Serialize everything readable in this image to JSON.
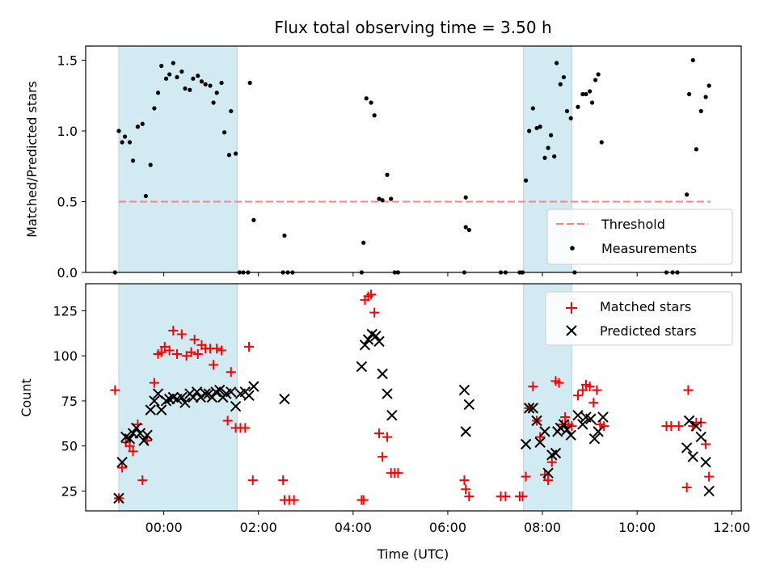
{
  "title": "Flux total observing time = 3.50 h",
  "colors": {
    "shade": "#add8e6",
    "threshold": "#ff7f7f",
    "measure": "#000000",
    "matched": "#ff0000",
    "predicted": "#000000"
  },
  "chart_data": [
    {
      "type": "scatter",
      "ylabel": "Matched/Predicted stars",
      "ylim": [
        0,
        1.6
      ],
      "yticks": [
        0.0,
        0.5,
        1.0,
        1.5
      ],
      "ytick_labels": [
        "0.0",
        "0.5",
        "1.0",
        "1.5"
      ],
      "xlim": [
        -1.65,
        12.2
      ],
      "shaded_intervals": [
        [
          -0.95,
          1.55
        ],
        [
          7.6,
          8.62
        ]
      ],
      "threshold": {
        "name": "Threshold",
        "value": 0.5,
        "x": [
          -0.95,
          11.55
        ]
      },
      "legend_position": "bottom-right",
      "series": [
        {
          "name": "Measurements",
          "marker": "dot",
          "points": [
            [
              -1.03,
              0.0
            ],
            [
              -0.95,
              1.0
            ],
            [
              -0.88,
              0.92
            ],
            [
              -0.82,
              0.96
            ],
            [
              -0.72,
              0.92
            ],
            [
              -0.65,
              0.79
            ],
            [
              -0.55,
              1.03
            ],
            [
              -0.45,
              1.05
            ],
            [
              -0.38,
              0.54
            ],
            [
              -0.28,
              0.76
            ],
            [
              -0.2,
              1.16
            ],
            [
              -0.12,
              1.27
            ],
            [
              -0.05,
              1.46
            ],
            [
              0.05,
              1.37
            ],
            [
              0.12,
              1.4
            ],
            [
              0.2,
              1.48
            ],
            [
              0.28,
              1.38
            ],
            [
              0.38,
              1.42
            ],
            [
              0.45,
              1.3
            ],
            [
              0.55,
              1.29
            ],
            [
              0.62,
              1.37
            ],
            [
              0.72,
              1.39
            ],
            [
              0.8,
              1.35
            ],
            [
              0.88,
              1.33
            ],
            [
              0.98,
              1.32
            ],
            [
              1.05,
              1.2
            ],
            [
              1.12,
              1.27
            ],
            [
              1.22,
              1.34
            ],
            [
              1.28,
              0.99
            ],
            [
              1.38,
              0.83
            ],
            [
              1.42,
              1.14
            ],
            [
              1.52,
              0.84
            ],
            [
              1.6,
              0.0
            ],
            [
              1.68,
              0.0
            ],
            [
              1.78,
              0.0
            ],
            [
              1.82,
              1.34
            ],
            [
              1.9,
              0.37
            ],
            [
              2.52,
              0.0
            ],
            [
              2.55,
              0.26
            ],
            [
              2.62,
              0.0
            ],
            [
              2.72,
              0.0
            ],
            [
              4.18,
              0.0
            ],
            [
              4.22,
              0.21
            ],
            [
              4.28,
              1.23
            ],
            [
              4.38,
              1.2
            ],
            [
              4.45,
              1.11
            ],
            [
              4.55,
              0.52
            ],
            [
              4.62,
              0.51
            ],
            [
              4.72,
              0.69
            ],
            [
              4.8,
              0.52
            ],
            [
              4.88,
              0.0
            ],
            [
              4.95,
              0.0
            ],
            [
              6.35,
              0.0
            ],
            [
              6.38,
              0.53
            ],
            [
              6.38,
              0.32
            ],
            [
              6.45,
              0.3
            ],
            [
              7.12,
              0.0
            ],
            [
              7.22,
              0.0
            ],
            [
              7.52,
              0.0
            ],
            [
              7.58,
              0.0
            ],
            [
              7.65,
              0.65
            ],
            [
              7.72,
              1.0
            ],
            [
              7.8,
              1.16
            ],
            [
              7.88,
              1.02
            ],
            [
              7.95,
              1.03
            ],
            [
              8.05,
              0.81
            ],
            [
              8.12,
              0.88
            ],
            [
              8.18,
              0.97
            ],
            [
              8.25,
              0.82
            ],
            [
              8.3,
              1.48
            ],
            [
              8.38,
              1.33
            ],
            [
              8.45,
              1.38
            ],
            [
              8.52,
              1.14
            ],
            [
              8.6,
              1.09
            ],
            [
              8.68,
              0.0
            ],
            [
              8.75,
              1.17
            ],
            [
              8.85,
              1.26
            ],
            [
              8.92,
              1.26
            ],
            [
              9.0,
              1.28
            ],
            [
              9.05,
              1.2
            ],
            [
              9.12,
              1.36
            ],
            [
              9.18,
              1.4
            ],
            [
              9.25,
              0.92
            ],
            [
              10.62,
              0.0
            ],
            [
              10.75,
              0.0
            ],
            [
              10.85,
              0.0
            ],
            [
              11.05,
              0.55
            ],
            [
              11.1,
              1.26
            ],
            [
              11.18,
              1.5
            ],
            [
              11.25,
              0.87
            ],
            [
              11.35,
              1.14
            ],
            [
              11.45,
              1.24
            ],
            [
              11.52,
              1.32
            ]
          ]
        }
      ]
    },
    {
      "type": "scatter",
      "xlabel": "Time (UTC)",
      "ylabel": "Count",
      "ylim": [
        14,
        140
      ],
      "yticks": [
        25,
        50,
        75,
        100,
        125
      ],
      "ytick_labels": [
        "25",
        "50",
        "75",
        "100",
        "125"
      ],
      "xlim": [
        -1.65,
        12.2
      ],
      "xticks": [
        0,
        2,
        4,
        6,
        8,
        10,
        12
      ],
      "xtick_labels": [
        "00:00",
        "02:00",
        "04:00",
        "06:00",
        "08:00",
        "10:00",
        "12:00"
      ],
      "shaded_intervals": [
        [
          -0.95,
          1.55
        ],
        [
          7.6,
          8.62
        ]
      ],
      "legend_position": "top-right",
      "series": [
        {
          "name": "Matched stars",
          "marker": "plus",
          "points": [
            [
              -1.03,
              81
            ],
            [
              -0.95,
              21
            ],
            [
              -0.88,
              38
            ],
            [
              -0.8,
              52
            ],
            [
              -0.72,
              50
            ],
            [
              -0.65,
              47
            ],
            [
              -0.55,
              62
            ],
            [
              -0.45,
              31
            ],
            [
              -0.35,
              53
            ],
            [
              -0.2,
              85
            ],
            [
              -0.12,
              101
            ],
            [
              -0.05,
              102
            ],
            [
              0.02,
              105
            ],
            [
              0.12,
              103
            ],
            [
              0.2,
              114
            ],
            [
              0.28,
              101
            ],
            [
              0.38,
              112
            ],
            [
              0.48,
              100
            ],
            [
              0.58,
              102
            ],
            [
              0.65,
              109
            ],
            [
              0.72,
              101
            ],
            [
              0.8,
              106
            ],
            [
              0.88,
              104
            ],
            [
              0.98,
              104
            ],
            [
              1.05,
              95
            ],
            [
              1.12,
              104
            ],
            [
              1.22,
              103
            ],
            [
              1.35,
              64
            ],
            [
              1.42,
              91
            ],
            [
              1.52,
              60
            ],
            [
              1.62,
              60
            ],
            [
              1.72,
              60
            ],
            [
              1.8,
              105
            ],
            [
              1.88,
              31
            ],
            [
              2.52,
              31
            ],
            [
              2.55,
              20
            ],
            [
              2.65,
              20
            ],
            [
              2.75,
              20
            ],
            [
              4.18,
              20
            ],
            [
              4.22,
              20
            ],
            [
              4.25,
              131
            ],
            [
              4.32,
              133
            ],
            [
              4.38,
              134
            ],
            [
              4.45,
              124
            ],
            [
              4.55,
              57
            ],
            [
              4.62,
              44
            ],
            [
              4.72,
              55
            ],
            [
              4.8,
              35
            ],
            [
              4.88,
              35
            ],
            [
              4.95,
              35
            ],
            [
              6.35,
              31
            ],
            [
              6.38,
              26
            ],
            [
              6.45,
              22
            ],
            [
              7.12,
              22
            ],
            [
              7.22,
              22
            ],
            [
              7.52,
              22
            ],
            [
              7.58,
              22
            ],
            [
              7.65,
              33
            ],
            [
              7.72,
              71
            ],
            [
              7.8,
              83
            ],
            [
              7.88,
              64
            ],
            [
              7.95,
              55
            ],
            [
              8.05,
              34
            ],
            [
              8.12,
              31
            ],
            [
              8.2,
              41
            ],
            [
              8.28,
              86
            ],
            [
              8.35,
              85
            ],
            [
              8.42,
              62
            ],
            [
              8.48,
              66
            ],
            [
              8.55,
              62
            ],
            [
              8.62,
              61
            ],
            [
              8.75,
              78
            ],
            [
              8.85,
              81
            ],
            [
              8.92,
              84
            ],
            [
              9.0,
              83
            ],
            [
              9.08,
              74
            ],
            [
              9.15,
              81
            ],
            [
              9.22,
              62
            ],
            [
              9.3,
              61
            ],
            [
              10.62,
              61
            ],
            [
              10.72,
              61
            ],
            [
              10.88,
              61
            ],
            [
              11.05,
              27
            ],
            [
              11.08,
              81
            ],
            [
              11.18,
              61
            ],
            [
              11.25,
              63
            ],
            [
              11.35,
              63
            ],
            [
              11.45,
              51
            ],
            [
              11.52,
              33
            ]
          ]
        },
        {
          "name": "Predicted stars",
          "marker": "x",
          "points": [
            [
              -0.95,
              21
            ],
            [
              -0.88,
              41
            ],
            [
              -0.8,
              55
            ],
            [
              -0.72,
              54
            ],
            [
              -0.65,
              57
            ],
            [
              -0.58,
              60
            ],
            [
              -0.5,
              57
            ],
            [
              -0.42,
              53
            ],
            [
              -0.35,
              56
            ],
            [
              -0.28,
              70
            ],
            [
              -0.2,
              75
            ],
            [
              -0.12,
              79
            ],
            [
              -0.05,
              70
            ],
            [
              0.05,
              75
            ],
            [
              0.12,
              76
            ],
            [
              0.2,
              77
            ],
            [
              0.28,
              76
            ],
            [
              0.38,
              77
            ],
            [
              0.45,
              74
            ],
            [
              0.55,
              79
            ],
            [
              0.62,
              77
            ],
            [
              0.7,
              80
            ],
            [
              0.78,
              77
            ],
            [
              0.88,
              79
            ],
            [
              0.95,
              79
            ],
            [
              1.02,
              77
            ],
            [
              1.1,
              80
            ],
            [
              1.18,
              81
            ],
            [
              1.25,
              77
            ],
            [
              1.32,
              79
            ],
            [
              1.42,
              80
            ],
            [
              1.52,
              72
            ],
            [
              1.62,
              79
            ],
            [
              1.72,
              80
            ],
            [
              1.8,
              78
            ],
            [
              1.9,
              83
            ],
            [
              2.55,
              76
            ],
            [
              4.18,
              94
            ],
            [
              4.25,
              106
            ],
            [
              4.32,
              109
            ],
            [
              4.4,
              112
            ],
            [
              4.48,
              111
            ],
            [
              4.55,
              108
            ],
            [
              4.62,
              90
            ],
            [
              4.72,
              79
            ],
            [
              4.82,
              67
            ],
            [
              6.35,
              81
            ],
            [
              6.38,
              58
            ],
            [
              6.45,
              73
            ],
            [
              7.65,
              51
            ],
            [
              7.72,
              71
            ],
            [
              7.8,
              71
            ],
            [
              7.88,
              64
            ],
            [
              7.95,
              52
            ],
            [
              8.05,
              58
            ],
            [
              8.12,
              35
            ],
            [
              8.2,
              45
            ],
            [
              8.28,
              46
            ],
            [
              8.32,
              58
            ],
            [
              8.38,
              60
            ],
            [
              8.45,
              62
            ],
            [
              8.52,
              59
            ],
            [
              8.6,
              56
            ],
            [
              8.75,
              67
            ],
            [
              8.85,
              62
            ],
            [
              8.92,
              66
            ],
            [
              9.02,
              65
            ],
            [
              9.1,
              54
            ],
            [
              9.18,
              58
            ],
            [
              9.28,
              66
            ],
            [
              11.05,
              49
            ],
            [
              11.1,
              64
            ],
            [
              11.18,
              44
            ],
            [
              11.25,
              61
            ],
            [
              11.35,
              55
            ],
            [
              11.45,
              41
            ],
            [
              11.52,
              25
            ]
          ]
        }
      ]
    }
  ]
}
